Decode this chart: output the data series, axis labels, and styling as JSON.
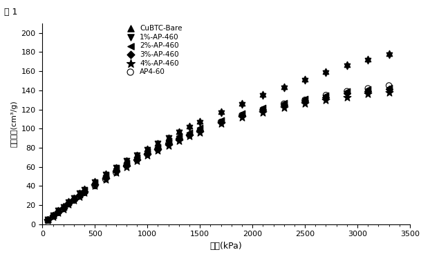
{
  "title": "図 1",
  "xlabel": "圧力(kPa)",
  "ylabel": "吸着容量(cm³/g)",
  "xlim": [
    0,
    3500
  ],
  "ylim": [
    0,
    210
  ],
  "xticks": [
    0,
    500,
    1000,
    1500,
    2000,
    2500,
    3000,
    3500
  ],
  "yticks": [
    0,
    20,
    40,
    60,
    80,
    100,
    120,
    140,
    160,
    180,
    200
  ],
  "series": [
    {
      "label": "CuBTC-Bare",
      "marker": "^",
      "fillstyle": "full",
      "x": [
        50,
        100,
        150,
        200,
        250,
        300,
        350,
        400,
        500,
        600,
        700,
        800,
        900,
        1000,
        1100,
        1200,
        1300,
        1400,
        1500,
        1700,
        1900,
        2100,
        2300,
        2500,
        2700,
        2900,
        3100,
        3300
      ],
      "y": [
        5,
        10,
        15,
        19,
        24,
        28,
        33,
        37,
        45,
        53,
        60,
        67,
        73,
        79,
        85,
        91,
        97,
        103,
        108,
        118,
        127,
        136,
        144,
        152,
        160,
        167,
        173,
        179
      ]
    },
    {
      "label": "1%-AP-460",
      "marker": "v",
      "fillstyle": "full",
      "x": [
        50,
        100,
        150,
        200,
        250,
        300,
        350,
        400,
        500,
        600,
        700,
        800,
        900,
        1000,
        1100,
        1200,
        1300,
        1400,
        1500,
        1700,
        1900,
        2100,
        2300,
        2500,
        2700,
        2900,
        3100,
        3300
      ],
      "y": [
        5,
        9,
        14,
        18,
        23,
        27,
        32,
        36,
        44,
        52,
        59,
        66,
        72,
        78,
        84,
        90,
        96,
        101,
        106,
        116,
        125,
        134,
        142,
        150,
        158,
        165,
        171,
        177
      ]
    },
    {
      "label": "2%-AP-460",
      "marker": "<",
      "fillstyle": "full",
      "x": [
        50,
        100,
        150,
        200,
        250,
        300,
        350,
        400,
        500,
        600,
        700,
        800,
        900,
        1000,
        1100,
        1200,
        1300,
        1400,
        1500,
        1700,
        1900,
        2100,
        2300,
        2500,
        2700,
        2900,
        3100,
        3300
      ],
      "y": [
        5,
        9,
        14,
        18,
        23,
        27,
        31,
        35,
        43,
        51,
        58,
        64,
        70,
        76,
        81,
        87,
        92,
        96,
        101,
        109,
        116,
        122,
        127,
        131,
        135,
        139,
        141,
        143
      ]
    },
    {
      "label": "3%-AP-460",
      "marker": "D",
      "fillstyle": "full",
      "x": [
        50,
        100,
        150,
        200,
        250,
        300,
        350,
        400,
        500,
        600,
        700,
        800,
        900,
        1000,
        1100,
        1200,
        1300,
        1400,
        1500,
        1700,
        1900,
        2100,
        2300,
        2500,
        2700,
        2900,
        3100,
        3300
      ],
      "y": [
        5,
        9,
        13,
        17,
        22,
        26,
        30,
        34,
        42,
        49,
        56,
        62,
        68,
        74,
        79,
        84,
        89,
        94,
        98,
        107,
        114,
        120,
        125,
        129,
        133,
        137,
        139,
        141
      ]
    },
    {
      "label": "4%-AP-460",
      "marker": "*",
      "fillstyle": "full",
      "x": [
        50,
        100,
        150,
        200,
        250,
        300,
        350,
        400,
        500,
        600,
        700,
        800,
        900,
        1000,
        1100,
        1200,
        1300,
        1400,
        1500,
        1700,
        1900,
        2100,
        2300,
        2500,
        2700,
        2900,
        3100,
        3300
      ],
      "y": [
        4,
        8,
        12,
        16,
        21,
        25,
        29,
        33,
        40,
        47,
        54,
        60,
        66,
        72,
        77,
        82,
        87,
        92,
        96,
        105,
        112,
        117,
        122,
        126,
        130,
        133,
        136,
        138
      ]
    },
    {
      "label": "AP4-60",
      "marker": "o",
      "fillstyle": "none",
      "x": [
        50,
        100,
        150,
        200,
        250,
        300,
        350,
        400,
        500,
        600,
        700,
        800,
        900,
        1000,
        1100,
        1200,
        1300,
        1400,
        1500,
        1700,
        1900,
        2100,
        2300,
        2500,
        2700,
        2900,
        3100,
        3300
      ],
      "y": [
        4,
        8,
        12,
        16,
        21,
        25,
        29,
        33,
        40,
        47,
        54,
        61,
        67,
        73,
        78,
        84,
        89,
        93,
        98,
        107,
        114,
        120,
        126,
        130,
        135,
        139,
        142,
        145
      ]
    }
  ]
}
